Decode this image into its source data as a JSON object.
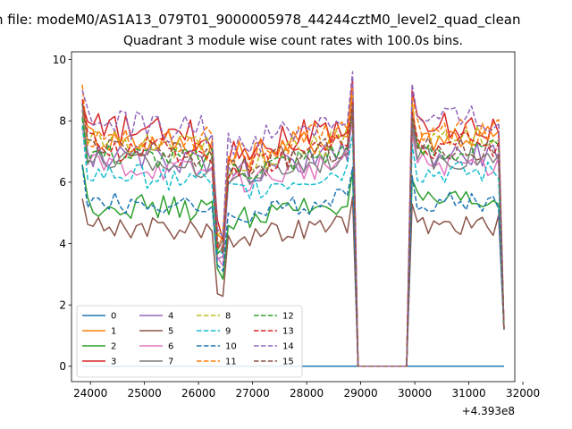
{
  "chart_data": {
    "type": "line",
    "suptitle": "n file: modeM0/AS1A13_079T01_9000005978_44244cztM0_level2_quad_clean",
    "title": "Quadrant 3 module wise count rates with 100.0s bins.",
    "xlabel": "",
    "ylabel": "",
    "x_offset_label": "+4.393e8",
    "xlim": [
      23650,
      31850
    ],
    "ylim": [
      -0.5,
      10.25
    ],
    "x_ticks": [
      24000,
      25000,
      26000,
      27000,
      28000,
      29000,
      30000,
      31000,
      32000
    ],
    "x_tick_labels": [
      "24000",
      "25000",
      "26000",
      "27000",
      "28000",
      "29000",
      "30000",
      "31000",
      "32000"
    ],
    "y_ticks": [
      0,
      2,
      4,
      6,
      8,
      10
    ],
    "y_tick_labels": [
      "0",
      "2",
      "4",
      "6",
      "8",
      "10"
    ],
    "legend": {
      "position": "lower-left",
      "columns": 4
    },
    "segments": [
      {
        "x_start": 23850,
        "x_end": 26250,
        "x_step": 100
      },
      {
        "x_start": 26350,
        "x_end": 28850,
        "x_step": 100
      },
      {
        "x_start": 29950,
        "x_end": 31650,
        "x_step": 100
      }
    ],
    "gap_x": [
      28950,
      29050,
      29750,
      29850
    ],
    "series": [
      {
        "name": "0",
        "color": "#1f77b4",
        "style": "solid",
        "level": 0,
        "amp": 0,
        "scale": 0
      },
      {
        "name": "1",
        "color": "#ff7f0e",
        "style": "solid",
        "level": 7.5,
        "amp": 0.5,
        "scale": 1.0
      },
      {
        "name": "2",
        "color": "#2ca02c",
        "style": "solid",
        "level": 5.3,
        "amp": 0.4,
        "scale": 0.9
      },
      {
        "name": "3",
        "color": "#d62728",
        "style": "solid",
        "level": 7.8,
        "amp": 0.5,
        "scale": 1.0
      },
      {
        "name": "4",
        "color": "#9467bd",
        "style": "solid",
        "level": 6.9,
        "amp": 0.4,
        "scale": 1.0
      },
      {
        "name": "5",
        "color": "#8c564b",
        "style": "solid",
        "level": 4.6,
        "amp": 0.35,
        "scale": 0.9
      },
      {
        "name": "6",
        "color": "#e377c2",
        "style": "solid",
        "level": 6.6,
        "amp": 0.4,
        "scale": 1.0
      },
      {
        "name": "7",
        "color": "#7f7f7f",
        "style": "solid",
        "level": 6.8,
        "amp": 0.4,
        "scale": 1.0
      },
      {
        "name": "8",
        "color": "#bcbd22",
        "style": "dashed",
        "level": 7.4,
        "amp": 0.5,
        "scale": 1.0
      },
      {
        "name": "9",
        "color": "#17becf",
        "style": "dashed",
        "level": 6.3,
        "amp": 0.4,
        "scale": 1.0
      },
      {
        "name": "10",
        "color": "#1f77b4",
        "style": "dashed",
        "level": 5.4,
        "amp": 0.35,
        "scale": 0.9
      },
      {
        "name": "11",
        "color": "#ff7f0e",
        "style": "dashed",
        "level": 7.6,
        "amp": 0.5,
        "scale": 1.0
      },
      {
        "name": "12",
        "color": "#2ca02c",
        "style": "dashed",
        "level": 7.0,
        "amp": 0.4,
        "scale": 1.0
      },
      {
        "name": "13",
        "color": "#d62728",
        "style": "dashed",
        "level": 7.2,
        "amp": 0.45,
        "scale": 1.0
      },
      {
        "name": "14",
        "color": "#9467bd",
        "style": "dashed",
        "level": 8.0,
        "amp": 0.5,
        "scale": 1.0
      },
      {
        "name": "15",
        "color": "#8c564b",
        "style": "dashed",
        "level": 7.1,
        "amp": 0.45,
        "scale": 1.0
      }
    ]
  }
}
